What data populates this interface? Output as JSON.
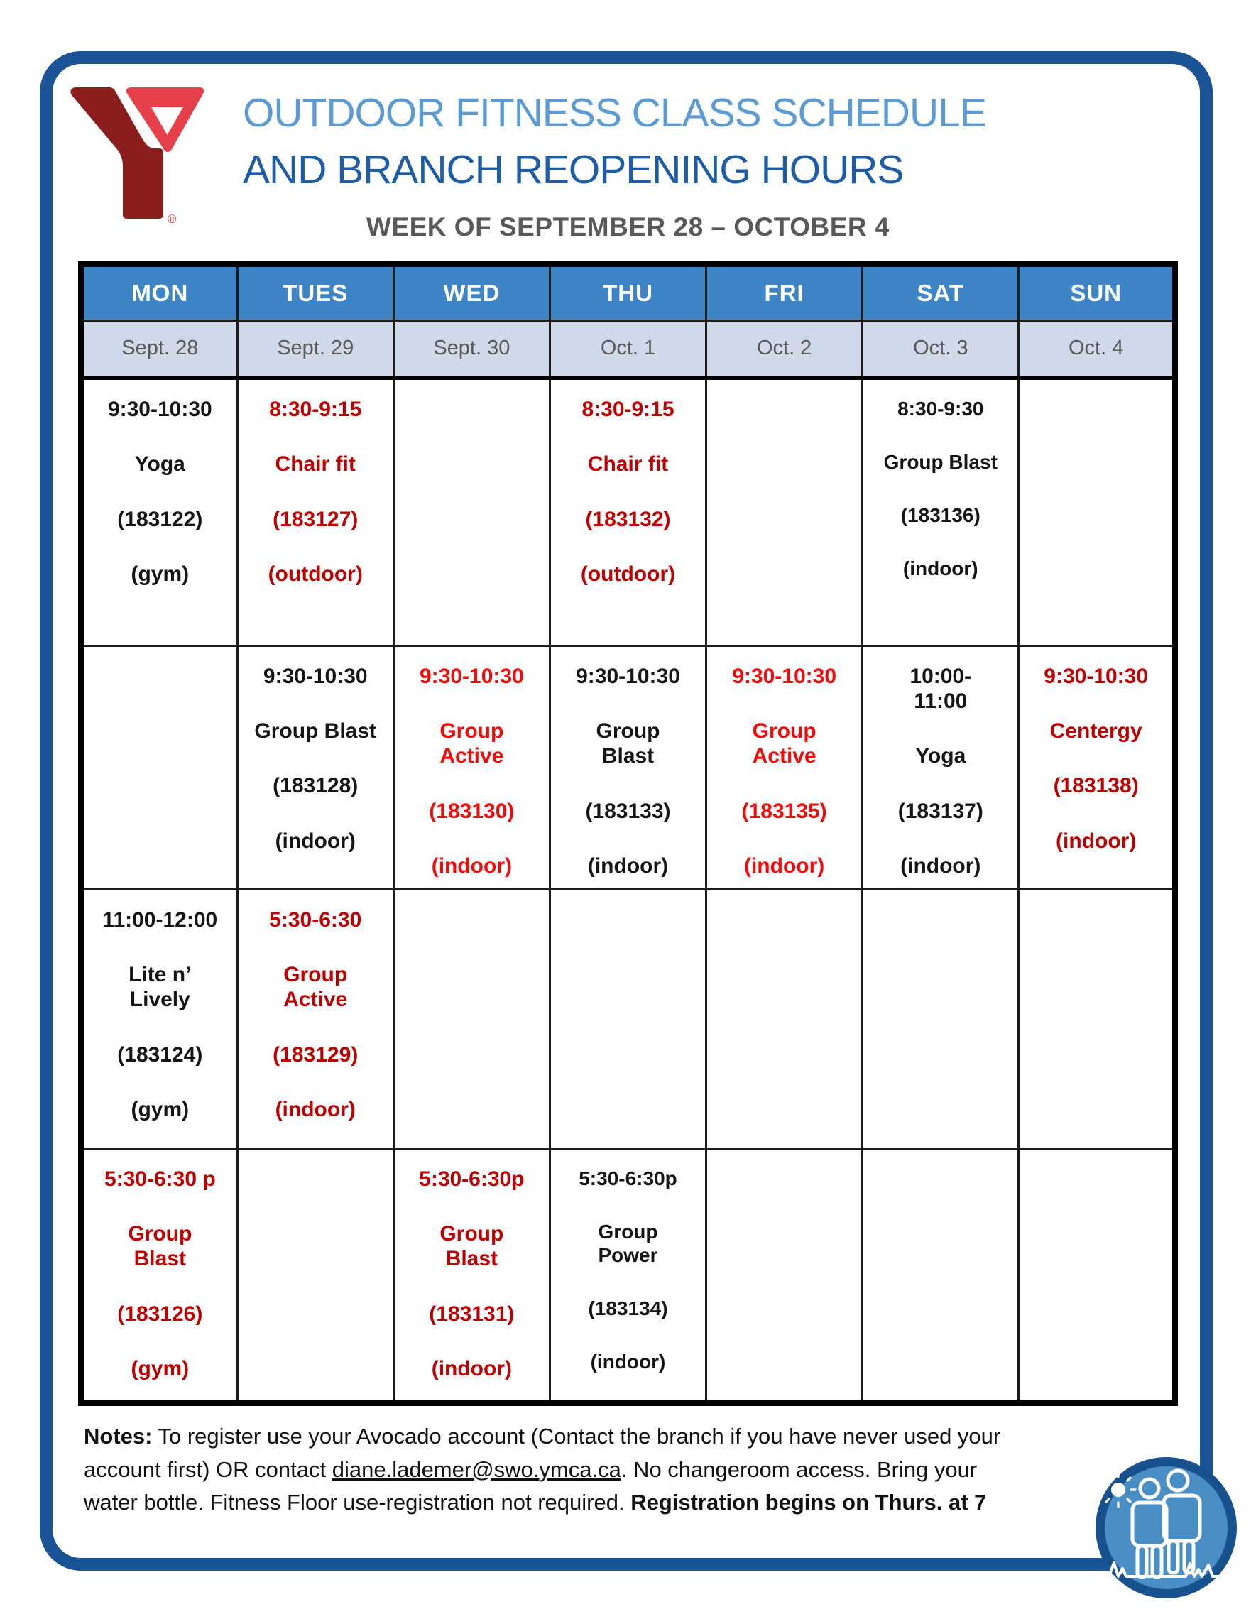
{
  "header": {
    "title_line1": "OUTDOOR FITNESS CLASS SCHEDULE",
    "title_line2": "AND BRANCH REOPENING HOURS",
    "week_subtitle": "WEEK OF SEPTEMBER 28 – OCTOBER 4",
    "logo_name": "ymca-logo",
    "registered_mark": "®"
  },
  "colors": {
    "frame_blue": "#1a5496",
    "day_header_bg": "#3d85c6",
    "date_row_bg": "#cfd9ea",
    "title_light_blue": "#5b9bd5",
    "title_dark_blue": "#1d5da8",
    "subtitle_gray": "#595959",
    "cell_black": "#151515",
    "cell_dark_red": "#c00000",
    "cell_bright_red": "#f60909",
    "logo_maroon": "#8b1d1d",
    "logo_light_red": "#e8404a",
    "icon_fill_blue": "#4a8ec6"
  },
  "table": {
    "days": [
      "MON",
      "TUES",
      "WED",
      "THU",
      "FRI",
      "SAT",
      "SUN"
    ],
    "dates": [
      "Sept. 28",
      "Sept. 29",
      "Sept. 30",
      "Oct. 1",
      "Oct. 2",
      "Oct. 3",
      "Oct. 4"
    ],
    "rows": [
      [
        {
          "color": "black",
          "lines": [
            "9:30-10:30",
            "Yoga",
            "(183122)",
            "(gym)"
          ]
        },
        {
          "color": "dark_red",
          "lines": [
            "8:30-9:15",
            "Chair fit",
            "(183127)",
            "(outdoor)"
          ]
        },
        null,
        {
          "color": "dark_red",
          "lines": [
            "8:30-9:15",
            "Chair fit",
            "(183132)",
            "(outdoor)"
          ]
        },
        null,
        {
          "color": "black",
          "size": "small",
          "lines": [
            "8:30-9:30",
            "Group Blast",
            "(183136)",
            "(indoor)"
          ]
        },
        null
      ],
      [
        null,
        {
          "color": "black",
          "lines": [
            "9:30-10:30",
            "Group Blast",
            "(183128)",
            "(indoor)"
          ]
        },
        {
          "color": "bright_red",
          "lines": [
            "9:30-10:30",
            "Group\nActive",
            "(183130)",
            "(indoor)"
          ]
        },
        {
          "color": "black",
          "lines": [
            "9:30-10:30",
            "Group\nBlast",
            "(183133)",
            "(indoor)"
          ]
        },
        {
          "color": "bright_red",
          "lines": [
            "9:30-10:30",
            "Group\nActive",
            "(183135)",
            "(indoor)"
          ]
        },
        {
          "color": "black",
          "lines": [
            "10:00-\n11:00",
            "Yoga",
            "(183137)",
            "(indoor)"
          ]
        },
        {
          "color": "dark_red",
          "lines": [
            "9:30-10:30",
            "Centergy",
            "(183138)",
            "(indoor)"
          ]
        }
      ],
      [
        {
          "color": "black",
          "lines": [
            "11:00-12:00",
            "Lite n’\nLively",
            "(183124)",
            "(gym)"
          ]
        },
        {
          "color": "dark_red",
          "lines": [
            "5:30-6:30",
            "Group\nActive",
            "(183129)",
            "(indoor)"
          ]
        },
        null,
        null,
        null,
        null,
        null
      ],
      [
        {
          "color": "dark_red",
          "lines": [
            "5:30-6:30 p",
            "Group\nBlast",
            "(183126)",
            "(gym)"
          ]
        },
        null,
        {
          "color": "dark_red",
          "lines": [
            "5:30-6:30p",
            "Group\nBlast",
            "(183131)",
            "(indoor)"
          ]
        },
        {
          "color": "black",
          "size": "small",
          "lines": [
            "5:30-6:30p",
            "Group\nPower",
            "(183134)",
            "(indoor)"
          ]
        },
        null,
        null,
        null
      ]
    ]
  },
  "notes": {
    "segments": [
      {
        "text": "Notes:",
        "style": "bold"
      },
      {
        "text": " To register use your Avocado account (Contact the branch if you have never used your account first) OR contact ",
        "style": "normal"
      },
      {
        "text": "diane.lademer@swo.ymca.ca",
        "style": "underline"
      },
      {
        "text": ".  No changeroom access. Bring your water bottle.  Fitness Floor use-registration not required. ",
        "style": "normal"
      },
      {
        "text": "Registration begins on Thurs. at 7",
        "style": "bold"
      }
    ]
  },
  "footer_icon_name": "people-outdoors-sun-icon"
}
